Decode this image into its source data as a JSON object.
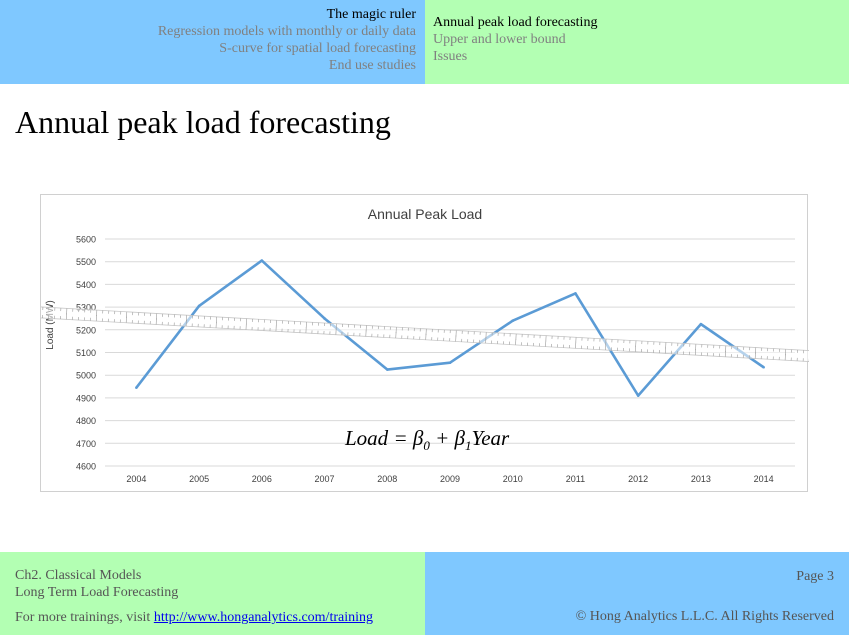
{
  "header": {
    "left_items": [
      {
        "label": "The magic ruler",
        "active": true
      },
      {
        "label": "Regression models with monthly or daily data",
        "active": false
      },
      {
        "label": "S-curve for spatial load forecasting",
        "active": false
      },
      {
        "label": "End use studies",
        "active": false
      }
    ],
    "right_items": [
      {
        "label": "Annual peak load forecasting",
        "active": true
      },
      {
        "label": "Upper and lower bound",
        "active": false
      },
      {
        "label": "Issues",
        "active": false
      }
    ]
  },
  "slide": {
    "title": "Annual peak load forecasting",
    "formula": {
      "lhs": "Load",
      "eq": " = ",
      "b0": "β",
      "b0_sub": "0",
      "plus": " + ",
      "b1": "β",
      "b1_sub": "1",
      "var": "Year"
    }
  },
  "chart_data": {
    "type": "line",
    "title": "Annual Peak Load",
    "ylabel": "Load (MW)",
    "xlabel": "",
    "categories": [
      "2004",
      "2005",
      "2006",
      "2007",
      "2008",
      "2009",
      "2010",
      "2011",
      "2012",
      "2013",
      "2014"
    ],
    "series": [
      {
        "values": [
          4945,
          5305,
          5505,
          5250,
          5025,
          5055,
          5240,
          5360,
          4910,
          5225,
          5035
        ]
      }
    ],
    "ylim": [
      4600,
      5600
    ],
    "yticks": [
      "4600",
      "4700",
      "4800",
      "4900",
      "5000",
      "5100",
      "5200",
      "5300",
      "5400",
      "5500",
      "5600"
    ],
    "grid": true,
    "legend": "none",
    "line_color": "#5b9bd5",
    "ruler_overlay": true
  },
  "footer": {
    "chapter": "Ch2. Classical Models",
    "course": "Long Term Load Forecasting",
    "visit_prefix": "For more trainings, visit ",
    "link": "http://www.honganalytics.com/training",
    "page": "Page 3",
    "copyright": "© Hong Analytics L.L.C. All Rights Reserved"
  }
}
